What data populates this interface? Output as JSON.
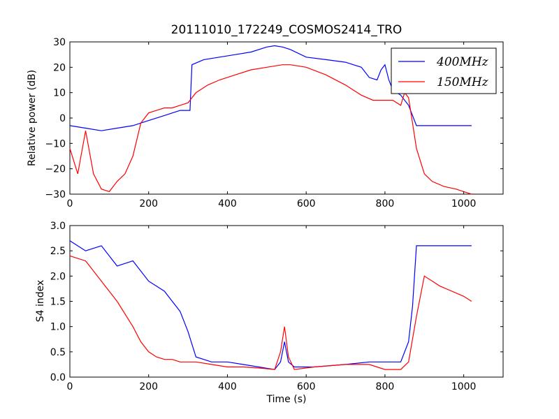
{
  "figure": {
    "title": "20111010_172249_COSMOS2414_TRO"
  },
  "chart_data": [
    {
      "type": "line",
      "title": "20111010_172249_COSMOS2414_TRO",
      "xlabel": "",
      "ylabel": "Relative power (dB)",
      "xlim": [
        0,
        1100
      ],
      "ylim": [
        -30,
        30
      ],
      "xticks": [
        "0",
        "200",
        "400",
        "600",
        "800",
        "1000"
      ],
      "yticks": [
        "−30",
        "−20",
        "−10",
        "0",
        "10",
        "20",
        "30"
      ],
      "grid": false,
      "legend": {
        "position": "top-right",
        "entries": [
          "400MHz",
          "150MHz"
        ]
      },
      "series": [
        {
          "name": "400MHz",
          "color": "#0000ff",
          "x": [
            0,
            40,
            80,
            120,
            160,
            200,
            240,
            280,
            305,
            310,
            340,
            380,
            420,
            460,
            500,
            520,
            540,
            560,
            600,
            650,
            700,
            740,
            760,
            780,
            790,
            800,
            810,
            820,
            840,
            860,
            880,
            900,
            940,
            980,
            1020
          ],
          "y": [
            -3,
            -4,
            -5,
            -4,
            -3,
            -1,
            1,
            3,
            3,
            21,
            23,
            24,
            25,
            26,
            28,
            28.5,
            28,
            27,
            24,
            23,
            22,
            20,
            16,
            15,
            19,
            21,
            15,
            11,
            9,
            5,
            -3,
            -3,
            -3,
            -3,
            -3
          ]
        },
        {
          "name": "150MHz",
          "color": "#ff0000",
          "x": [
            0,
            20,
            40,
            60,
            80,
            100,
            120,
            140,
            160,
            180,
            200,
            220,
            240,
            260,
            280,
            300,
            320,
            350,
            380,
            420,
            460,
            500,
            540,
            560,
            600,
            650,
            700,
            740,
            770,
            800,
            820,
            840,
            850,
            860,
            870,
            880,
            900,
            920,
            950,
            980,
            1000,
            1020
          ],
          "y": [
            -12,
            -22,
            -5,
            -22,
            -28,
            -29,
            -25,
            -22,
            -15,
            -2,
            2,
            3,
            4,
            4,
            5,
            6,
            10,
            13,
            15,
            17,
            19,
            20,
            21,
            21,
            20,
            17,
            13,
            9,
            7,
            7,
            7,
            5,
            10,
            8,
            -2,
            -12,
            -22,
            -25,
            -27,
            -28,
            -29,
            -30
          ]
        }
      ]
    },
    {
      "type": "line",
      "title": "",
      "xlabel": "Time (s)",
      "ylabel": "S4 index",
      "xlim": [
        0,
        1100
      ],
      "ylim": [
        0,
        3
      ],
      "xticks": [
        "0",
        "200",
        "400",
        "600",
        "800",
        "1000"
      ],
      "yticks": [
        "0.0",
        "0.5",
        "1.0",
        "1.5",
        "2.0",
        "2.5",
        "3.0"
      ],
      "grid": false,
      "series": [
        {
          "name": "400MHz",
          "color": "#0000ff",
          "x": [
            0,
            40,
            80,
            120,
            160,
            200,
            220,
            240,
            260,
            280,
            300,
            320,
            360,
            400,
            440,
            480,
            520,
            535,
            545,
            555,
            570,
            620,
            700,
            760,
            800,
            840,
            860,
            870,
            880,
            900,
            940,
            1000,
            1020
          ],
          "y": [
            2.7,
            2.5,
            2.6,
            2.2,
            2.3,
            1.9,
            1.8,
            1.7,
            1.5,
            1.3,
            0.9,
            0.4,
            0.3,
            0.3,
            0.25,
            0.2,
            0.15,
            0.3,
            0.7,
            0.3,
            0.2,
            0.2,
            0.25,
            0.3,
            0.3,
            0.3,
            0.7,
            1.4,
            2.6,
            2.6,
            2.6,
            2.6,
            2.6
          ]
        },
        {
          "name": "150MHz",
          "color": "#ff0000",
          "x": [
            0,
            40,
            80,
            120,
            160,
            180,
            200,
            220,
            240,
            260,
            280,
            320,
            360,
            400,
            440,
            480,
            520,
            535,
            545,
            555,
            570,
            620,
            700,
            760,
            800,
            840,
            860,
            880,
            900,
            940,
            1000,
            1020
          ],
          "y": [
            2.4,
            2.3,
            1.9,
            1.5,
            1.0,
            0.7,
            0.5,
            0.4,
            0.35,
            0.35,
            0.3,
            0.3,
            0.25,
            0.2,
            0.2,
            0.18,
            0.15,
            0.5,
            1.0,
            0.4,
            0.15,
            0.2,
            0.25,
            0.25,
            0.15,
            0.15,
            0.3,
            1.2,
            2.0,
            1.8,
            1.6,
            1.5
          ]
        }
      ]
    }
  ]
}
